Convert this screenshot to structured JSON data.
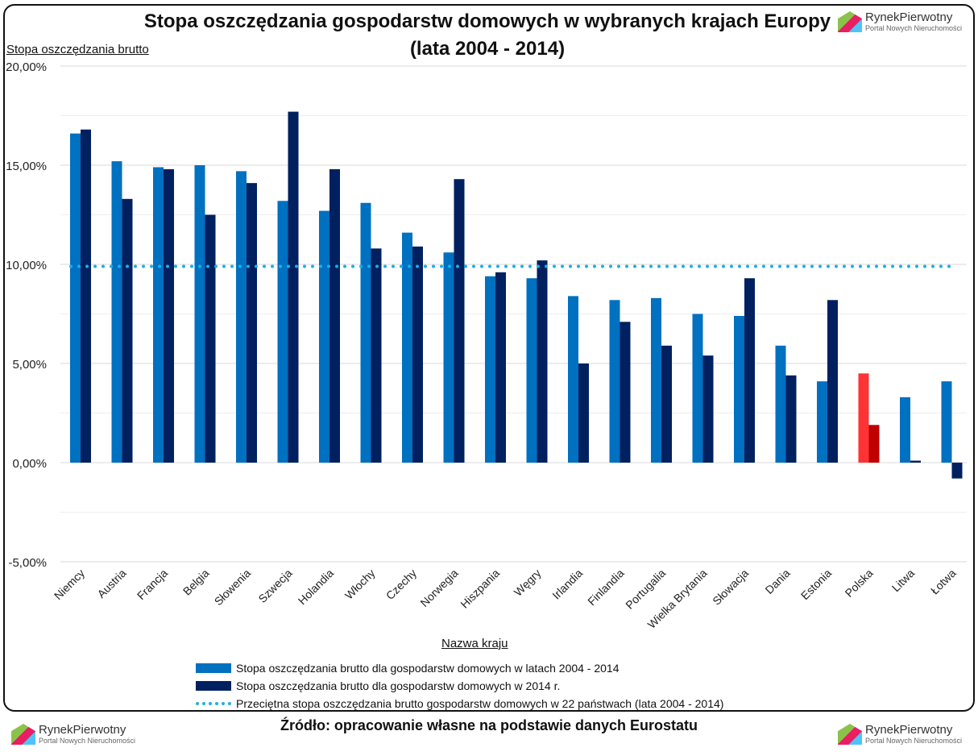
{
  "chart_data": {
    "type": "bar",
    "title": "Stopa oszczędzania gospodarstw domowych w wybranych krajach Europy",
    "subtitle": "(lata 2004 - 2014)",
    "ylabel": "Stopa oszczędzania brutto",
    "xlabel": "Nazwa kraju",
    "ylim": [
      -5,
      20
    ],
    "yticks": [
      "-5,00%",
      "0,00%",
      "5,00%",
      "10,00%",
      "15,00%",
      "20,00%"
    ],
    "grid": true,
    "legend": "bottom",
    "categories": [
      "Niemcy",
      "Austria",
      "Francja",
      "Belgia",
      "Słowenia",
      "Szwecja",
      "Holandia",
      "Włochy",
      "Czechy",
      "Norwegia",
      "Hiszpania",
      "Węgry",
      "Irlandia",
      "Finlandia",
      "Portugalia",
      "Wielka Brytania",
      "Słowacja",
      "Dania",
      "Estonia",
      "Polska",
      "Litwa",
      "Łotwa"
    ],
    "series": [
      {
        "name": "Stopa oszczędzania brutto dla gospodarstw domowych w latach 2004 - 2014",
        "color": "#0070c0",
        "values": [
          16.6,
          15.2,
          14.9,
          15.0,
          14.7,
          13.2,
          12.7,
          13.1,
          11.6,
          10.6,
          9.4,
          9.3,
          8.4,
          8.2,
          8.3,
          7.5,
          7.4,
          5.9,
          4.1,
          4.5,
          3.3,
          4.1
        ]
      },
      {
        "name": "Stopa oszczędzania brutto dla gospodarstw domowych w 2014 r.",
        "color": "#002060",
        "values": [
          16.8,
          13.3,
          14.8,
          12.5,
          14.1,
          17.7,
          14.8,
          10.8,
          10.9,
          14.3,
          9.6,
          10.2,
          5.0,
          7.1,
          5.9,
          5.4,
          9.3,
          4.4,
          8.2,
          1.9,
          0.1,
          -0.8
        ]
      }
    ],
    "highlight": {
      "category": "Polska",
      "colors": [
        "#ff3333",
        "#c00000"
      ]
    },
    "average": {
      "name": "Przeciętna stopa oszczędzania brutto gospodarstw domowych w 22 państwach (lata 2004 - 2014)",
      "value": 9.9,
      "color": "#1ab0e8"
    }
  },
  "source": "Źródło: opracowanie własne na podstawie danych Eurostatu",
  "logo": {
    "name": "RynekPierwotny",
    "tagline": "Portal Nowych Nieruchomości"
  }
}
